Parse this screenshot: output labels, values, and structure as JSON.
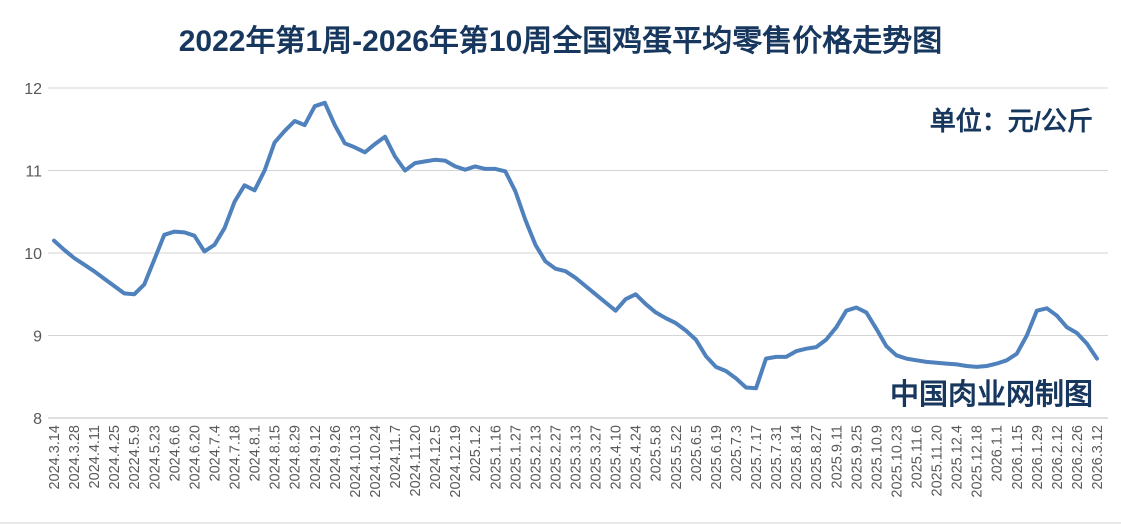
{
  "colors": {
    "title": "#17375E",
    "line": "#4F81BD",
    "grid": "#D4D4D4",
    "axis": "#BFBFBF",
    "tick_text": "#595959",
    "bottom_edge": "#E9E9E9"
  },
  "watermark": "中国肉业网制图",
  "chart_data": {
    "type": "line",
    "title": "2022年第1周-2026年第10周全国鸡蛋平均零售价格走势图",
    "unit_label": "单位：元/公斤",
    "xlabel": "",
    "ylabel": "",
    "ylim": [
      8,
      12
    ],
    "yticks": [
      12,
      11,
      10,
      9,
      8
    ],
    "grid": true,
    "legend": "none",
    "x_ticks_every_n_values": 2,
    "x_tick_labels": [
      "2024.3.14",
      "2024.3.28",
      "2024.4.11",
      "2024.4.25",
      "20224.5.9",
      "2024.5.23",
      "2024.6.6",
      "2024.6.20",
      "2024.7.4",
      "2024.7.18",
      "2024.8.1",
      "2024.8.15",
      "2024.8.29",
      "2024.9.12",
      "2024.9.26",
      "2024.10.13",
      "2024.10.24",
      "2024.11.7",
      "2024.11.20",
      "2024.12.5",
      "2024.12.19",
      "2025.1.2",
      "2025.1.16",
      "2025.1.27",
      "2025.2.13",
      "2025.2.27",
      "2025.3.13",
      "2025.3.27",
      "2025.4.10",
      "2025.4.24",
      "2025.5.8",
      "2025.5.22",
      "2025.6.5",
      "2025.6.19",
      "2025.7.3",
      "2025.7.17",
      "2025.7.31",
      "2025.8.14",
      "2025.8.27",
      "2025.9.11",
      "2025.9.25",
      "2025.10.9",
      "2025.10.23",
      "2025.11.6",
      "2025.11.20",
      "2025.12.4",
      "2025.12.18",
      "2026.1.1",
      "2026.1.15",
      "2026.1.29",
      "2026.2.12",
      "2026.2.26",
      "2026.3.12"
    ],
    "values": [
      10.15,
      10.04,
      9.94,
      9.86,
      9.78,
      9.69,
      9.6,
      9.51,
      9.5,
      9.62,
      9.92,
      10.22,
      10.26,
      10.25,
      10.21,
      10.02,
      10.1,
      10.3,
      10.62,
      10.82,
      10.76,
      11.0,
      11.34,
      11.48,
      11.6,
      11.55,
      11.78,
      11.82,
      11.55,
      11.33,
      11.28,
      11.22,
      11.32,
      11.41,
      11.17,
      11.0,
      11.09,
      11.11,
      11.13,
      11.12,
      11.05,
      11.01,
      11.05,
      11.02,
      11.02,
      10.99,
      10.75,
      10.4,
      10.1,
      9.9,
      9.81,
      9.78,
      9.7,
      9.6,
      9.5,
      9.4,
      9.3,
      9.44,
      9.5,
      9.38,
      9.28,
      9.21,
      9.15,
      9.06,
      8.95,
      8.75,
      8.62,
      8.57,
      8.48,
      8.37,
      8.36,
      8.72,
      8.74,
      8.74,
      8.81,
      8.84,
      8.86,
      8.95,
      9.1,
      9.3,
      9.34,
      9.28,
      9.08,
      8.87,
      8.76,
      8.72,
      8.7,
      8.68,
      8.67,
      8.66,
      8.65,
      8.63,
      8.62,
      8.63,
      8.66,
      8.7,
      8.78,
      9.0,
      9.3,
      9.33,
      9.24,
      9.1,
      9.03,
      8.9,
      8.72
    ]
  }
}
